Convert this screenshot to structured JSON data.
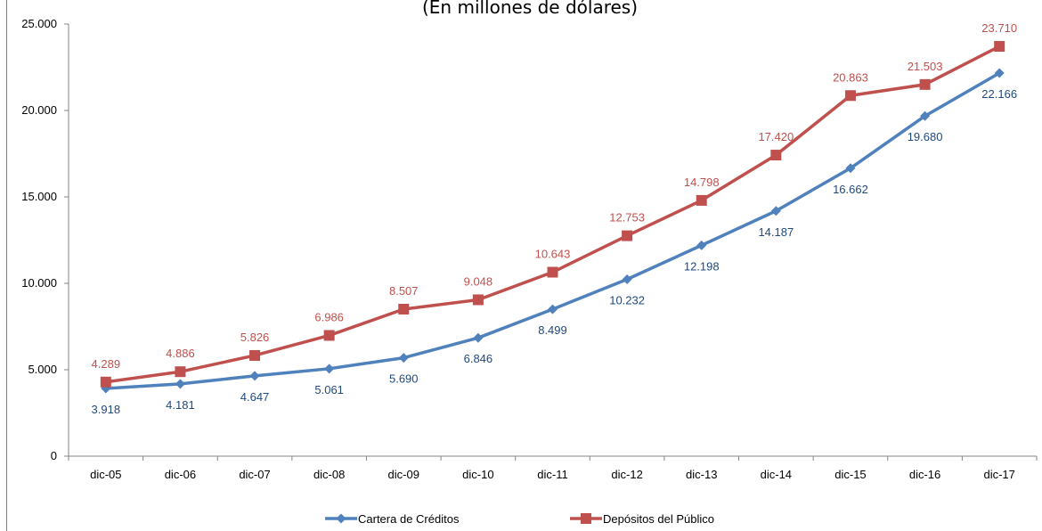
{
  "chart_data": {
    "type": "line",
    "subtitle": "(En millones de dólares)",
    "categories": [
      "dic-05",
      "dic-06",
      "dic-07",
      "dic-08",
      "dic-09",
      "dic-10",
      "dic-11",
      "dic-12",
      "dic-13",
      "dic-14",
      "dic-15",
      "dic-16",
      "dic-17"
    ],
    "ylim": [
      0,
      25000
    ],
    "yticks": [
      0,
      5000,
      10000,
      15000,
      20000,
      25000
    ],
    "ytick_labels": [
      "0",
      "5.000",
      "10.000",
      "15.000",
      "20.000",
      "25.000"
    ],
    "legend_position": "bottom",
    "grid": false,
    "series": [
      {
        "name": "Cartera de Créditos",
        "color": "#4F81BD",
        "label_color": "#1F497D",
        "marker": "diamond",
        "values": [
          3918,
          4181,
          4647,
          5061,
          5690,
          6846,
          8499,
          10232,
          12198,
          14187,
          16662,
          19680,
          22166
        ],
        "labels": [
          "3.918",
          "4.181",
          "4.647",
          "5.061",
          "5.690",
          "6.846",
          "8.499",
          "10.232",
          "12.198",
          "14.187",
          "16.662",
          "19.680",
          "22.166"
        ]
      },
      {
        "name": "Depósitos del Público",
        "color": "#C0504D",
        "label_color": "#C0504D",
        "marker": "square",
        "values": [
          4289,
          4886,
          5826,
          6986,
          8507,
          9048,
          10643,
          12753,
          14798,
          17420,
          20863,
          21503,
          23710
        ],
        "labels": [
          "4.289",
          "4.886",
          "5.826",
          "6.986",
          "8.507",
          "9.048",
          "10.643",
          "12.753",
          "14.798",
          "17.420",
          "20.863",
          "21.503",
          "23.710"
        ]
      }
    ]
  }
}
